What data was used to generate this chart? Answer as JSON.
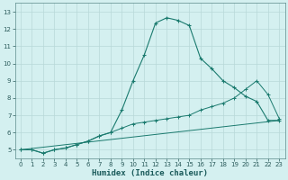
{
  "xlabel": "Humidex (Indice chaleur)",
  "bg_color": "#d4f0f0",
  "grid_color": "#b8d8d8",
  "line_color": "#1a7a6e",
  "xlim": [
    -0.5,
    23.5
  ],
  "ylim": [
    4.5,
    13.5
  ],
  "xticks": [
    0,
    1,
    2,
    3,
    4,
    5,
    6,
    7,
    8,
    9,
    10,
    11,
    12,
    13,
    14,
    15,
    16,
    17,
    18,
    19,
    20,
    21,
    22,
    23
  ],
  "yticks": [
    5,
    6,
    7,
    8,
    9,
    10,
    11,
    12,
    13
  ],
  "line1_x": [
    0,
    1,
    2,
    3,
    4,
    5,
    6,
    7,
    8,
    9,
    10,
    11,
    12,
    13,
    14,
    15,
    16,
    17,
    18,
    19,
    20,
    21,
    22,
    23
  ],
  "line1_y": [
    5.0,
    5.0,
    4.8,
    5.0,
    5.1,
    5.3,
    5.5,
    5.8,
    6.0,
    7.3,
    9.0,
    10.5,
    12.35,
    12.65,
    12.5,
    12.2,
    10.3,
    9.7,
    9.0,
    8.6,
    8.1,
    7.8,
    6.7,
    6.7
  ],
  "line2_x": [
    0,
    1,
    2,
    3,
    4,
    5,
    6,
    7,
    8,
    9,
    10,
    11,
    12,
    13,
    14,
    15,
    16,
    17,
    18,
    19,
    20,
    21,
    22,
    23
  ],
  "line2_y": [
    5.0,
    5.0,
    4.8,
    5.0,
    5.1,
    5.3,
    5.5,
    5.8,
    6.0,
    6.25,
    6.5,
    6.6,
    6.7,
    6.8,
    6.9,
    7.0,
    7.3,
    7.5,
    7.7,
    8.0,
    8.5,
    9.0,
    8.2,
    6.8
  ],
  "line3_x": [
    0,
    23
  ],
  "line3_y": [
    5.0,
    6.7
  ]
}
